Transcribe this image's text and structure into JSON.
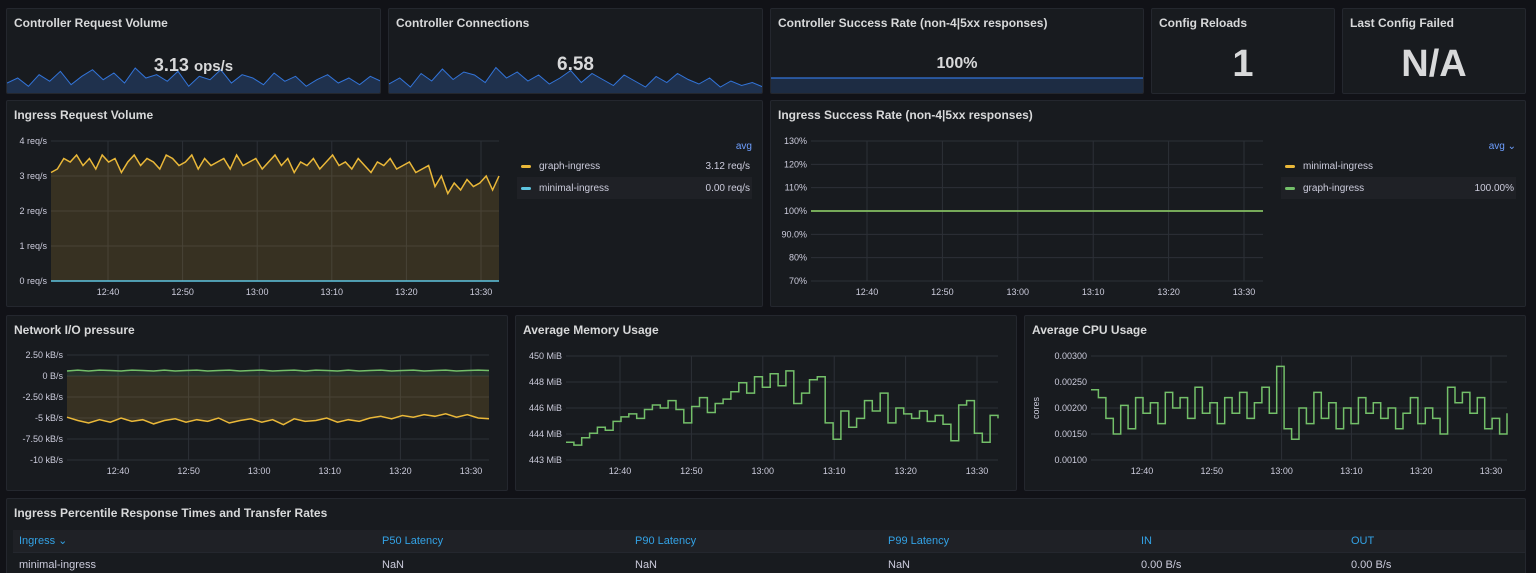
{
  "colors": {
    "yellow": "#eab839",
    "cyan": "#5ec4e0",
    "green": "#73bf69",
    "blue": "#3274d9",
    "link": "#6e9fff",
    "header": "#33a2e5"
  },
  "time_ticks": [
    "12:40",
    "12:50",
    "13:00",
    "13:10",
    "13:20",
    "13:30"
  ],
  "stats": {
    "req_volume": {
      "title": "Controller Request Volume",
      "value": "3.13",
      "unit": "ops/s"
    },
    "connections": {
      "title": "Controller Connections",
      "value": "6.58"
    },
    "success_rate": {
      "title": "Controller Success Rate (non-4|5xx responses)",
      "value": "100%"
    },
    "reloads": {
      "title": "Config Reloads",
      "value": "1"
    },
    "last_failed": {
      "title": "Last Config Failed",
      "value": "N/A"
    }
  },
  "ingress_volume": {
    "title": "Ingress Request Volume",
    "legend_calc": "avg",
    "legend": [
      {
        "name": "graph-ingress",
        "value": "3.12 req/s",
        "color": "#eab839"
      },
      {
        "name": "minimal-ingress",
        "value": "0.00 req/s",
        "color": "#5ec4e0"
      }
    ]
  },
  "ingress_success": {
    "title": "Ingress Success Rate (non-4|5xx responses)",
    "legend_calc": "avg ⌄",
    "legend": [
      {
        "name": "minimal-ingress",
        "value": "",
        "color": "#eab839"
      },
      {
        "name": "graph-ingress",
        "value": "100.00%",
        "color": "#73bf69"
      }
    ]
  },
  "network": {
    "title": "Network I/O pressure"
  },
  "memory": {
    "title": "Average Memory Usage"
  },
  "cpu": {
    "title": "Average CPU Usage"
  },
  "table": {
    "title": "Ingress Percentile Response Times and Transfer Rates",
    "columns": [
      "Ingress ⌄",
      "P50 Latency",
      "P90 Latency",
      "P99 Latency",
      "IN",
      "OUT"
    ],
    "rows": [
      [
        "minimal-ingress",
        "NaN",
        "NaN",
        "NaN",
        "0.00 B/s",
        "0.00 B/s"
      ]
    ]
  },
  "chart_data": [
    {
      "type": "line",
      "title": "Ingress Request Volume",
      "yticks": [
        "4 req/s",
        "3 req/s",
        "2 req/s",
        "1 req/s",
        "0 req/s"
      ],
      "ylim": [
        0,
        4
      ],
      "series": [
        {
          "name": "graph-ingress",
          "values": [
            3.1,
            3.2,
            3.5,
            3.4,
            3.6,
            3.3,
            3.5,
            3.2,
            3.6,
            3.4,
            3.5,
            3.1,
            3.4,
            3.6,
            3.3,
            3.5,
            3.4,
            3.2,
            3.6,
            3.5,
            3.3,
            3.4,
            3.6,
            3.2,
            3.5,
            3.3,
            3.4,
            3.5,
            3.2,
            3.6,
            3.3,
            3.4,
            3.5,
            3.2,
            3.4,
            3.6,
            3.3,
            3.5,
            3.1,
            3.4,
            3.3,
            3.5,
            3.2,
            3.4,
            3.6,
            3.3,
            3.4,
            3.2,
            3.5,
            3.3,
            3.1,
            3.4,
            3.3,
            3.5,
            3.2,
            3.3,
            3.4,
            3.1,
            3.2,
            3.3,
            2.7,
            3.0,
            2.5,
            2.8,
            2.6,
            2.9,
            2.7,
            2.8,
            3.0,
            2.6,
            3.0
          ]
        },
        {
          "name": "minimal-ingress",
          "values": [
            0,
            0,
            0,
            0,
            0,
            0,
            0,
            0,
            0,
            0,
            0,
            0,
            0,
            0,
            0,
            0,
            0,
            0,
            0,
            0,
            0,
            0,
            0,
            0,
            0,
            0,
            0,
            0,
            0,
            0,
            0,
            0,
            0,
            0,
            0,
            0,
            0,
            0,
            0,
            0,
            0,
            0,
            0,
            0,
            0,
            0,
            0,
            0,
            0,
            0,
            0,
            0,
            0,
            0,
            0,
            0,
            0,
            0,
            0,
            0,
            0,
            0,
            0,
            0,
            0,
            0,
            0,
            0,
            0,
            0,
            0
          ]
        }
      ]
    },
    {
      "type": "line",
      "title": "Ingress Success Rate (non-4|5xx responses)",
      "yticks": [
        "130%",
        "120%",
        "110%",
        "100%",
        "90.0%",
        "80%",
        "70%"
      ],
      "ylim": [
        70,
        130
      ],
      "series": [
        {
          "name": "minimal-ingress",
          "values": [
            100,
            100,
            100,
            100,
            100,
            100,
            100,
            100,
            100,
            100,
            100,
            100,
            100,
            100,
            100,
            100,
            100,
            100,
            100,
            100
          ]
        },
        {
          "name": "graph-ingress",
          "values": [
            100,
            100,
            100,
            100,
            100,
            100,
            100,
            100,
            100,
            100,
            100,
            100,
            100,
            100,
            100,
            100,
            100,
            100,
            100,
            100
          ]
        }
      ]
    },
    {
      "type": "line",
      "title": "Network I/O pressure",
      "yticks": [
        "2.50 kB/s",
        "0 B/s",
        "-2.50 kB/s",
        "-5 kB/s",
        "-7.50 kB/s",
        "-10 kB/s"
      ],
      "ylim": [
        -10,
        2.5
      ],
      "series": [
        {
          "values": [
            0.6,
            0.7,
            0.6,
            0.7,
            0.65,
            0.6,
            0.7,
            0.65,
            0.6,
            0.7,
            0.6,
            0.65,
            0.7,
            0.6,
            0.65,
            0.7,
            0.6,
            0.65,
            0.7,
            0.6,
            0.65,
            0.7,
            0.6,
            0.7,
            0.65,
            0.6,
            0.7,
            0.6,
            0.65,
            0.7,
            0.6,
            0.65,
            0.7,
            0.6,
            0.65,
            0.7,
            0.6,
            0.65,
            0.7,
            0.65
          ]
        },
        {
          "values": [
            -4.9,
            -5.3,
            -5.6,
            -5.2,
            -5.5,
            -5.0,
            -5.4,
            -5.2,
            -5.7,
            -5.3,
            -5.1,
            -5.5,
            -5.2,
            -5.4,
            -5.0,
            -5.6,
            -5.3,
            -5.1,
            -5.5,
            -5.2,
            -5.8,
            -5.1,
            -5.4,
            -5.3,
            -5.0,
            -5.5,
            -5.2,
            -5.4,
            -5.0,
            -4.8,
            -5.1,
            -4.7,
            -4.9,
            -4.6,
            -4.8,
            -4.5,
            -4.9,
            -4.6,
            -5.0,
            -5.1
          ]
        }
      ]
    },
    {
      "type": "line",
      "title": "Average Memory Usage",
      "yticks": [
        "450 MiB",
        "448 MiB",
        "446 MiB",
        "444 MiB",
        "443 MiB"
      ],
      "ylim": [
        443,
        450
      ],
      "series": [
        {
          "values": [
            444.2,
            444.0,
            444.5,
            444.8,
            445.2,
            445.0,
            445.6,
            445.9,
            446.1,
            445.8,
            446.4,
            446.7,
            446.5,
            447.0,
            446.4,
            445.5,
            446.6,
            447.2,
            446.2,
            446.8,
            447.1,
            447.6,
            448.2,
            447.5,
            448.6,
            447.9,
            448.8,
            448.0,
            449.0,
            446.8,
            447.5,
            448.4,
            448.6,
            445.5,
            444.4,
            446.3,
            445.2,
            445.8,
            447.0,
            446.3,
            447.5,
            445.5,
            446.5,
            446.1,
            445.8,
            446.3,
            445.6,
            446.0,
            445.4,
            444.3,
            446.7,
            447.0,
            444.8,
            444.2,
            446.0,
            445.8
          ]
        }
      ]
    },
    {
      "type": "line",
      "title": "Average CPU Usage",
      "ylabel": "cores",
      "yticks": [
        "0.00300",
        "0.00250",
        "0.00200",
        "0.00150",
        "0.00100"
      ],
      "ylim": [
        0.001,
        0.003
      ],
      "series": [
        {
          "values": [
            0.00235,
            0.0022,
            0.0018,
            0.0015,
            0.00205,
            0.0016,
            0.0022,
            0.0019,
            0.0021,
            0.0017,
            0.0023,
            0.002,
            0.0022,
            0.0018,
            0.0024,
            0.0019,
            0.0021,
            0.0017,
            0.0022,
            0.0019,
            0.0023,
            0.0018,
            0.0021,
            0.0024,
            0.0019,
            0.0028,
            0.0016,
            0.0014,
            0.002,
            0.0017,
            0.0023,
            0.0018,
            0.0021,
            0.0016,
            0.002,
            0.0017,
            0.0022,
            0.0019,
            0.0021,
            0.0018,
            0.002,
            0.0016,
            0.0019,
            0.0022,
            0.0017,
            0.002,
            0.0018,
            0.0015,
            0.0024,
            0.0021,
            0.0023,
            0.0019,
            0.0022,
            0.0016,
            0.0018,
            0.0015,
            0.0019
          ]
        }
      ]
    },
    {
      "type": "area",
      "title": "Controller Request Volume",
      "series": [
        {
          "values": [
            2.6,
            2.9,
            2.4,
            3.1,
            2.7,
            3.3,
            2.5,
            3.0,
            3.4,
            2.8,
            3.2,
            2.6,
            3.5,
            2.9,
            3.1,
            2.7,
            3.3,
            2.4,
            3.0,
            2.8,
            3.4,
            2.6,
            3.1,
            2.9,
            2.5,
            3.2,
            2.7,
            3.0,
            2.4,
            2.8,
            3.1,
            2.6,
            2.9,
            2.5,
            3.0,
            2.7
          ]
        }
      ]
    },
    {
      "type": "area",
      "title": "Controller Connections",
      "series": [
        {
          "values": [
            6.2,
            6.6,
            6.0,
            6.9,
            6.4,
            7.2,
            6.5,
            7.0,
            6.8,
            6.3,
            7.3,
            6.6,
            7.0,
            6.4,
            6.8,
            6.2,
            6.6,
            7.1,
            6.3,
            6.9,
            6.5,
            6.1,
            6.8,
            6.4,
            6.0,
            6.7,
            6.3,
            6.9,
            6.5,
            6.2,
            6.6,
            6.0,
            6.4,
            6.1,
            6.3,
            6.0
          ]
        }
      ]
    },
    {
      "type": "area",
      "title": "Controller Success Rate (non-4|5xx responses)",
      "series": [
        {
          "values": [
            100,
            100,
            100,
            100,
            100,
            100,
            100,
            100,
            100,
            100
          ]
        }
      ]
    }
  ]
}
